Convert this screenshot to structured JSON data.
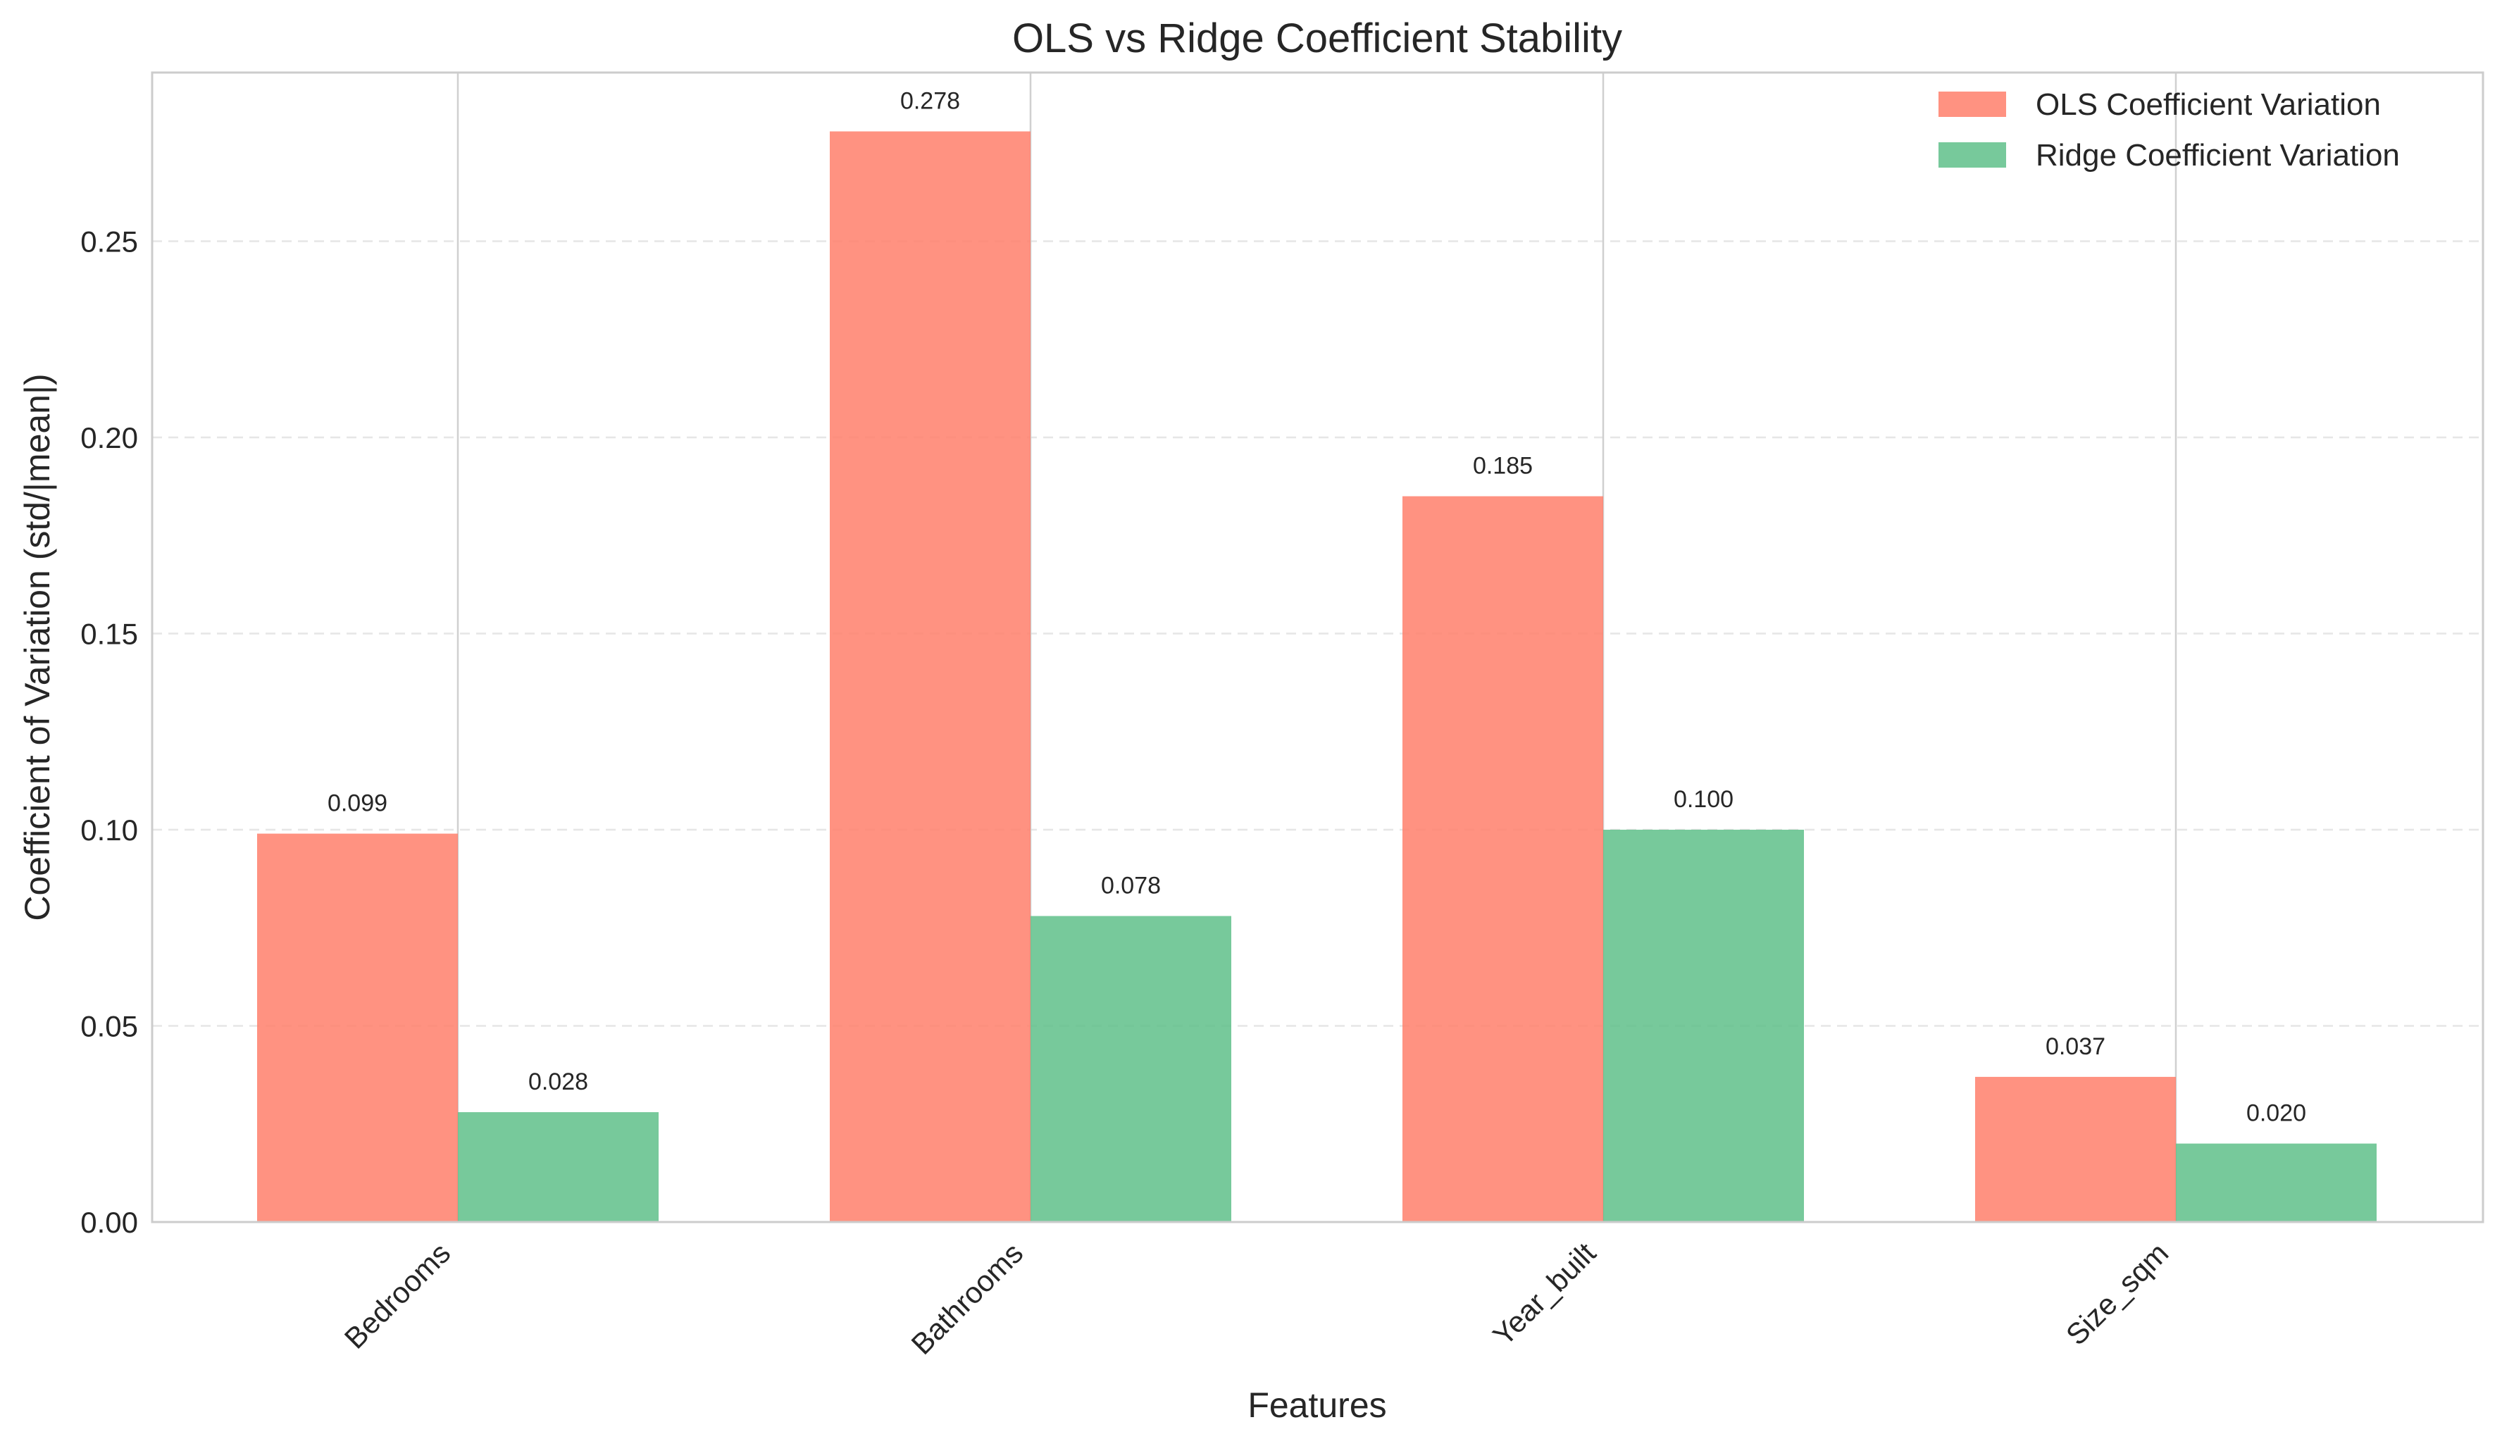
{
  "chart_data": {
    "type": "bar",
    "title": "OLS vs Ridge Coefficient Stability",
    "xlabel": "Features",
    "ylabel": "Coefficient of Variation (std/|mean|)",
    "categories": [
      "Bedrooms",
      "Bathrooms",
      "Year_built",
      "Size_sqm"
    ],
    "series": [
      {
        "name": "OLS Coefficient Variation",
        "color": "#FF7F6B",
        "values": [
          0.099,
          0.278,
          0.185,
          0.037
        ],
        "labels": [
          "0.099",
          "0.278",
          "0.185",
          "0.037"
        ]
      },
      {
        "name": "Ridge Coefficient Variation",
        "color": "#5FC08A",
        "values": [
          0.028,
          0.078,
          0.1,
          0.02
        ],
        "labels": [
          "0.028",
          "0.078",
          "0.100",
          "0.020"
        ]
      }
    ],
    "ylim": [
      0,
      0.293
    ],
    "yticks": [
      "0.00",
      "0.05",
      "0.10",
      "0.15",
      "0.20",
      "0.25"
    ],
    "grid": "y dashed, x at category centers",
    "legend": "top-right"
  }
}
